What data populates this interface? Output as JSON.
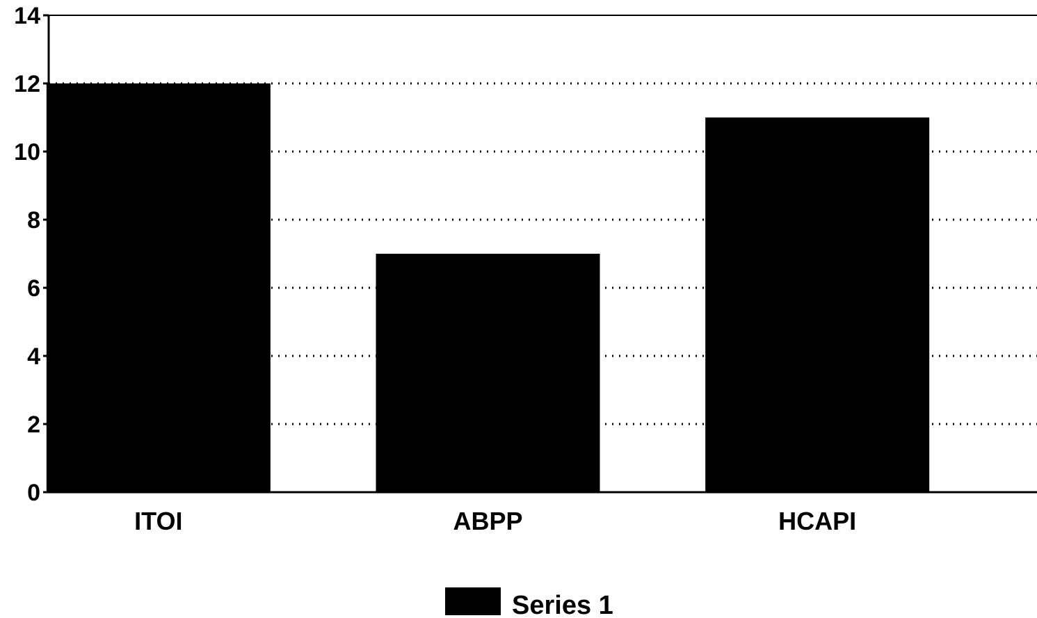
{
  "chart_data": {
    "type": "bar",
    "categories": [
      "ITOI",
      "ABPP",
      "HCAPI"
    ],
    "series": [
      {
        "name": "Series 1",
        "values": [
          12,
          7,
          11
        ],
        "color": "#000000"
      }
    ],
    "title": "",
    "xlabel": "",
    "ylabel": "",
    "ylim": [
      0,
      14
    ],
    "yticks": [
      "0",
      "2",
      "4",
      "6",
      "8",
      "10",
      "12",
      "14"
    ],
    "grid": true,
    "grid_style": "dotted",
    "legend": {
      "position": "bottom-center",
      "entries": [
        "Series 1"
      ]
    }
  }
}
